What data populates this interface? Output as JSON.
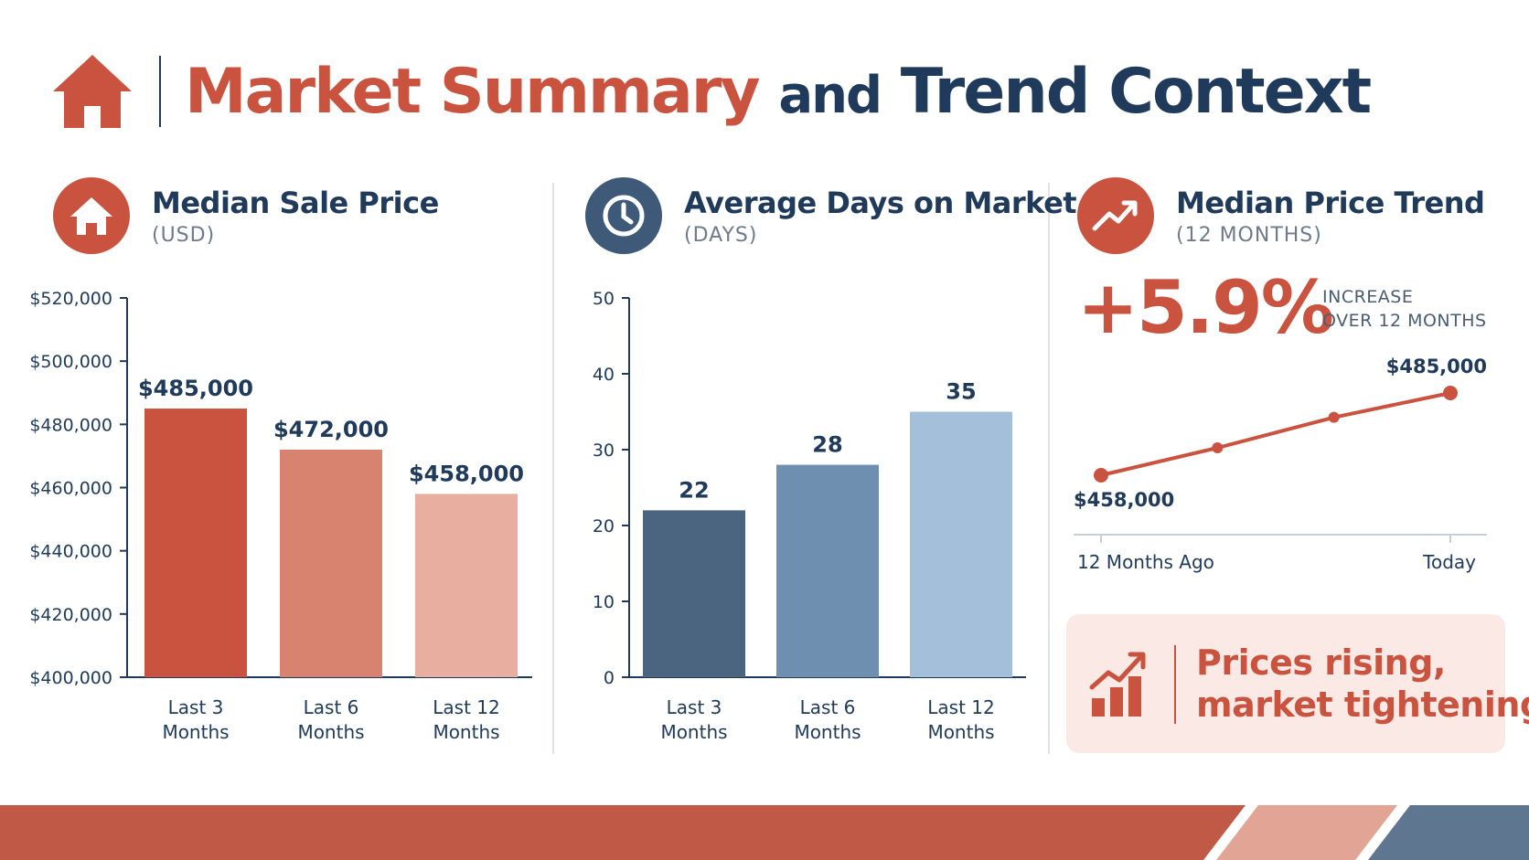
{
  "header": {
    "title_part1": "Market Summary",
    "title_part2": "and",
    "title_part3": "Trend Context",
    "icon": "house-icon"
  },
  "colors": {
    "red": "#c9533f",
    "red_mid": "#d88270",
    "red_light": "#e8afa1",
    "navy": "#1f3a5a",
    "blue_dark": "#4b6580",
    "blue_mid": "#6e8faf",
    "blue_light": "#a3bfd9",
    "callout_bg": "#fbe9e6"
  },
  "panels": {
    "price": {
      "title": "Median Sale Price",
      "subtitle": "(USD)",
      "icon": "house-icon"
    },
    "days": {
      "title": "Average Days on Market",
      "subtitle": "(DAYS)",
      "icon": "clock-icon"
    },
    "trend": {
      "title": "Median Price Trend",
      "subtitle": "(12 MONTHS)",
      "icon": "trend-up-icon"
    }
  },
  "chart_data": [
    {
      "type": "bar",
      "title": "Median Sale Price",
      "subtitle": "(USD)",
      "categories": [
        "Last 3 Months",
        "Last 6 Months",
        "Last 12 Months"
      ],
      "category_lines": [
        [
          "Last 3",
          "Months"
        ],
        [
          "Last 6",
          "Months"
        ],
        [
          "Last 12",
          "Months"
        ]
      ],
      "values": [
        485000,
        472000,
        458000
      ],
      "value_labels": [
        "$485,000",
        "$472,000",
        "$458,000"
      ],
      "ylim": [
        400000,
        520000
      ],
      "yticks": [
        400000,
        420000,
        440000,
        460000,
        480000,
        500000,
        520000
      ],
      "ytick_labels": [
        "$400,000",
        "$420,000",
        "$440,000",
        "$460,000",
        "$480,000",
        "$500,000",
        "$520,000"
      ],
      "grid": false,
      "colors": [
        "#c9533f",
        "#d88270",
        "#e8afa1"
      ]
    },
    {
      "type": "bar",
      "title": "Average Days on Market",
      "subtitle": "(DAYS)",
      "categories": [
        "Last 3 Months",
        "Last 6 Months",
        "Last 12 Months"
      ],
      "category_lines": [
        [
          "Last 3",
          "Months"
        ],
        [
          "Last 6",
          "Months"
        ],
        [
          "Last 12",
          "Months"
        ]
      ],
      "values": [
        22,
        28,
        35
      ],
      "value_labels": [
        "22",
        "28",
        "35"
      ],
      "ylim": [
        0,
        50
      ],
      "yticks": [
        0,
        10,
        20,
        30,
        40,
        50
      ],
      "ytick_labels": [
        "0",
        "10",
        "20",
        "30",
        "40",
        "50"
      ],
      "grid": false,
      "colors": [
        "#4b6580",
        "#6e8faf",
        "#a3bfd9"
      ]
    },
    {
      "type": "line",
      "title": "Median Price Trend",
      "subtitle": "(12 MONTHS)",
      "x_labels": [
        "12 Months Ago",
        "Today"
      ],
      "values": [
        458000,
        467000,
        477000,
        485000
      ],
      "start_label": "$458,000",
      "end_label": "$485,000",
      "headline": "+5.9%",
      "headline_note_line1": "INCREASE",
      "headline_note_line2": "OVER 12 MONTHS",
      "ylim": [
        440000,
        500000
      ],
      "color": "#c9533f"
    }
  ],
  "callout": {
    "line1": "Prices rising,",
    "line2": "market tightening",
    "icon": "bar-chart-rising-icon"
  }
}
